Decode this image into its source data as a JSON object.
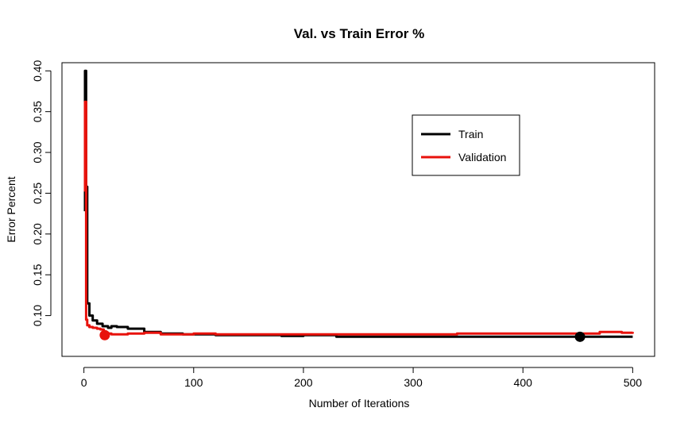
{
  "chart_data": {
    "type": "line",
    "title": "Val. vs Train Error %",
    "xlabel": "Number of Iterations",
    "ylabel": "Error Percent",
    "xlim": [
      -20,
      520
    ],
    "ylim": [
      0.05,
      0.41
    ],
    "x_ticks": [
      0,
      100,
      200,
      300,
      400,
      500
    ],
    "y_ticks": [
      0.1,
      0.15,
      0.2,
      0.25,
      0.3,
      0.35,
      0.4
    ],
    "x_tick_labels": [
      "0",
      "100",
      "200",
      "300",
      "400",
      "500"
    ],
    "y_tick_labels": [
      "0.10",
      "0.15",
      "0.20",
      "0.25",
      "0.30",
      "0.35",
      "0.40"
    ],
    "grid": false,
    "legend": {
      "position": "top-right",
      "entries": [
        "Train",
        "Validation"
      ]
    },
    "series": [
      {
        "name": "Train",
        "color": "#000000",
        "x": [
          1,
          1,
          2,
          2,
          3,
          5,
          8,
          12,
          17,
          22,
          25,
          30,
          40,
          55,
          70,
          90,
          100,
          120,
          150,
          180,
          200,
          220,
          230,
          250,
          300,
          350,
          400,
          450,
          500
        ],
        "y": [
          0.228,
          0.4,
          0.228,
          0.258,
          0.115,
          0.1,
          0.094,
          0.09,
          0.087,
          0.085,
          0.087,
          0.086,
          0.084,
          0.08,
          0.078,
          0.077,
          0.077,
          0.076,
          0.076,
          0.075,
          0.076,
          0.076,
          0.074,
          0.074,
          0.074,
          0.074,
          0.074,
          0.074,
          0.074
        ],
        "marker": {
          "x": 452,
          "y": 0.074
        }
      },
      {
        "name": "Validation",
        "color": "#e8120c",
        "x": [
          1,
          1,
          2,
          3,
          5,
          8,
          12,
          15,
          18,
          22,
          25,
          30,
          40,
          55,
          70,
          100,
          120,
          150,
          200,
          220,
          230,
          250,
          300,
          335,
          340,
          400,
          455,
          470,
          490,
          500
        ],
        "y": [
          0.252,
          0.362,
          0.095,
          0.088,
          0.086,
          0.085,
          0.084,
          0.083,
          0.079,
          0.078,
          0.077,
          0.077,
          0.078,
          0.079,
          0.077,
          0.078,
          0.077,
          0.077,
          0.077,
          0.077,
          0.077,
          0.077,
          0.077,
          0.077,
          0.078,
          0.078,
          0.078,
          0.08,
          0.079,
          0.08
        ],
        "marker": {
          "x": 19,
          "y": 0.076
        }
      }
    ]
  }
}
